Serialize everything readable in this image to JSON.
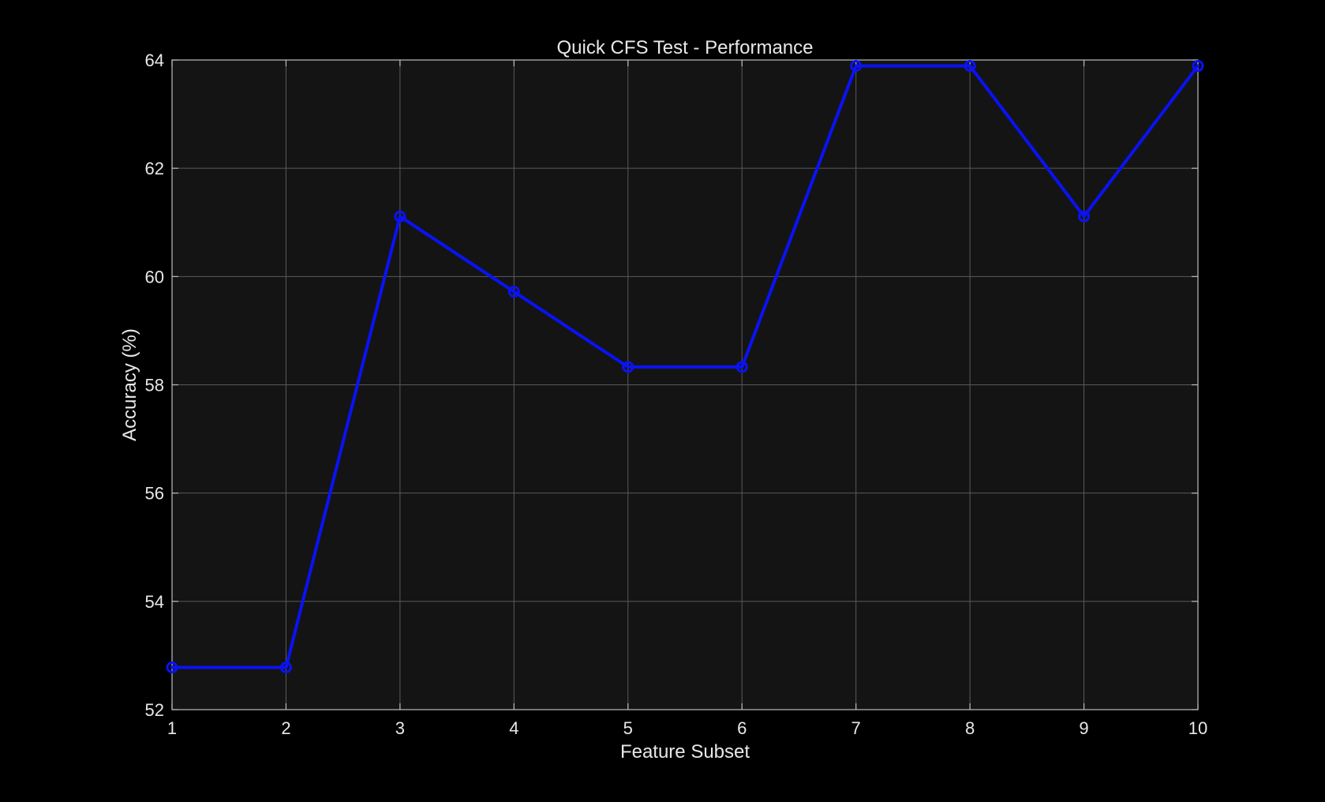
{
  "chart_data": {
    "type": "line",
    "title": "Quick CFS Test - Performance",
    "xlabel": "Feature Subset",
    "ylabel": "Accuracy (%)",
    "x": [
      1,
      2,
      3,
      4,
      5,
      6,
      7,
      8,
      9,
      10
    ],
    "series": [
      {
        "values": [
          52.78,
          52.78,
          61.11,
          59.72,
          58.33,
          58.33,
          63.89,
          63.89,
          61.11,
          63.89
        ],
        "color": "#0a12f5",
        "marker": "circle"
      }
    ],
    "xlim": [
      1,
      10
    ],
    "ylim": [
      52,
      64
    ],
    "xticks": [
      1,
      2,
      3,
      4,
      5,
      6,
      7,
      8,
      9,
      10
    ],
    "yticks": [
      52,
      54,
      56,
      58,
      60,
      62,
      64
    ],
    "grid": true,
    "background": "#141414",
    "figure_background": "#000000",
    "axis_color": "#bdbdbd",
    "grid_color": "#5a5a5a",
    "text_color": "#e8e8e8"
  }
}
